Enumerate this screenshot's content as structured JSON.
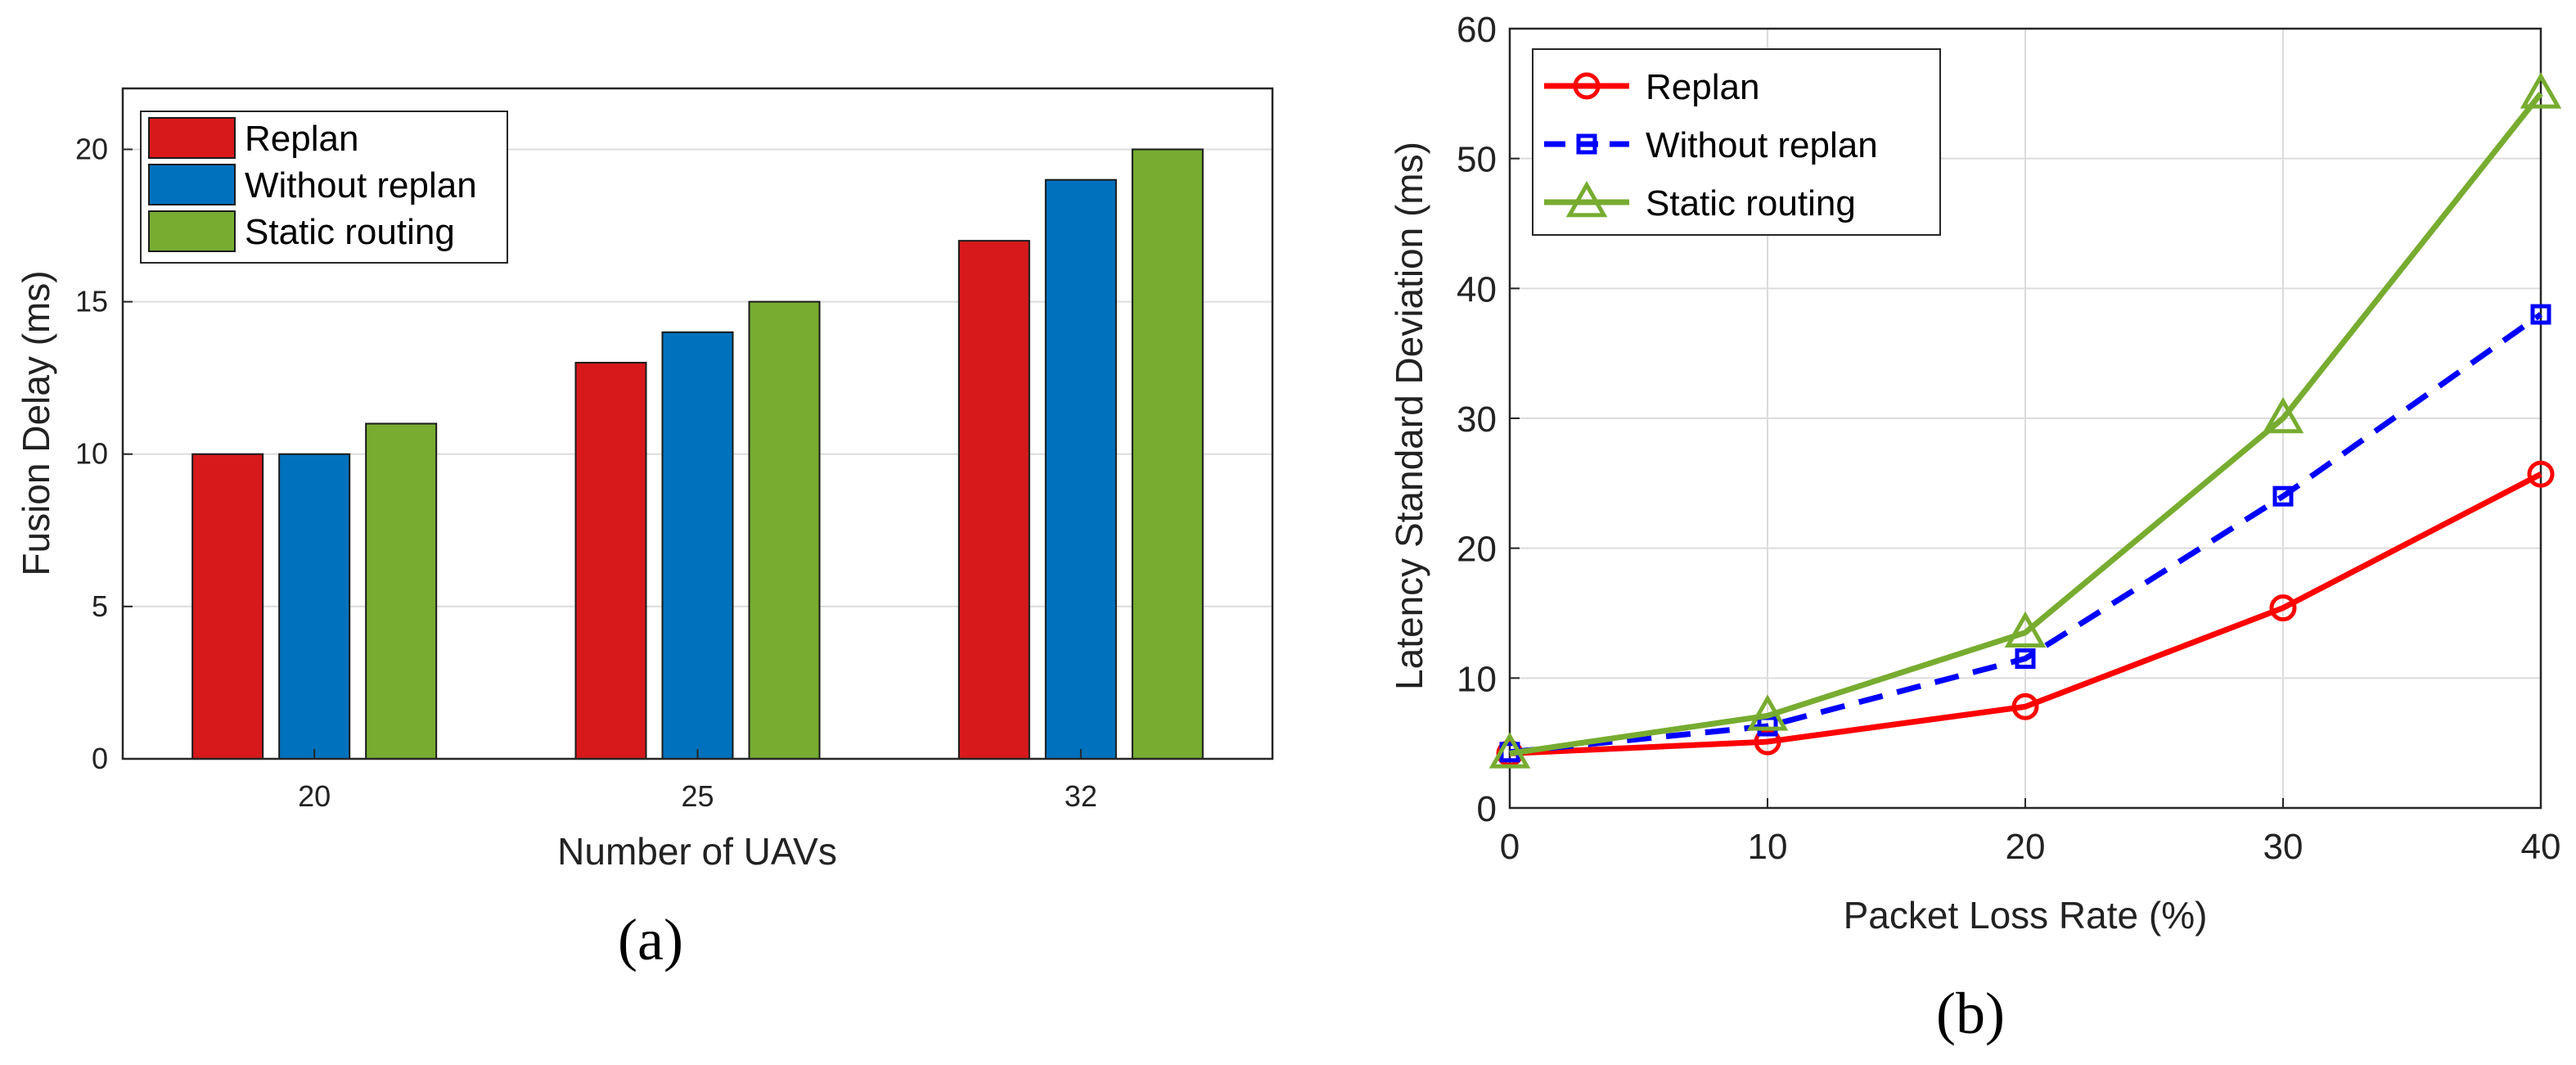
{
  "figure_captions": {
    "a": "(a)",
    "b": "(b)"
  },
  "colors": {
    "replan": "#d7191c",
    "without_replan": "#0072bd",
    "static_routing": "#77ac30",
    "line_replan": "#ff0000",
    "line_without_replan": "#0000ff",
    "line_static": "#77ac30"
  },
  "chart_data": [
    {
      "id": "a",
      "type": "bar",
      "title": "",
      "xlabel": "Number of UAVs",
      "ylabel": "Fusion Delay (ms)",
      "categories": [
        "20",
        "25",
        "32"
      ],
      "ylim": [
        0,
        22
      ],
      "yticks": [
        0,
        5,
        10,
        15,
        20
      ],
      "grid": true,
      "legend_position": "top-left",
      "series": [
        {
          "name": "Replan",
          "values": [
            10,
            13,
            17
          ],
          "color": "#d7191c"
        },
        {
          "name": "Without replan",
          "values": [
            10,
            14,
            19
          ],
          "color": "#0072bd"
        },
        {
          "name": "Static routing",
          "values": [
            11,
            15,
            20
          ],
          "color": "#77ac30"
        }
      ]
    },
    {
      "id": "b",
      "type": "line",
      "title": "",
      "xlabel": "Packet Loss Rate (%)",
      "ylabel": "Latency Standard Deviation (ms)",
      "x": [
        0,
        10,
        20,
        30,
        40
      ],
      "xlim": [
        0,
        40
      ],
      "ylim": [
        0,
        60
      ],
      "xticks": [
        0,
        10,
        20,
        30,
        40
      ],
      "yticks": [
        0,
        10,
        20,
        30,
        40,
        50,
        60
      ],
      "grid": true,
      "legend_position": "top-left",
      "series": [
        {
          "name": "Replan",
          "values": [
            4.2,
            5.1,
            7.8,
            15.4,
            25.7
          ],
          "color": "#ff0000",
          "marker": "circle",
          "dash": "solid"
        },
        {
          "name": "Without replan",
          "values": [
            4.3,
            6.3,
            11.5,
            24.0,
            38.0
          ],
          "color": "#0000ff",
          "marker": "square",
          "dash": "dashed"
        },
        {
          "name": "Static routing",
          "values": [
            4.2,
            7.1,
            13.5,
            30.0,
            55.0
          ],
          "color": "#77ac30",
          "marker": "triangle",
          "dash": "solid"
        }
      ]
    }
  ]
}
